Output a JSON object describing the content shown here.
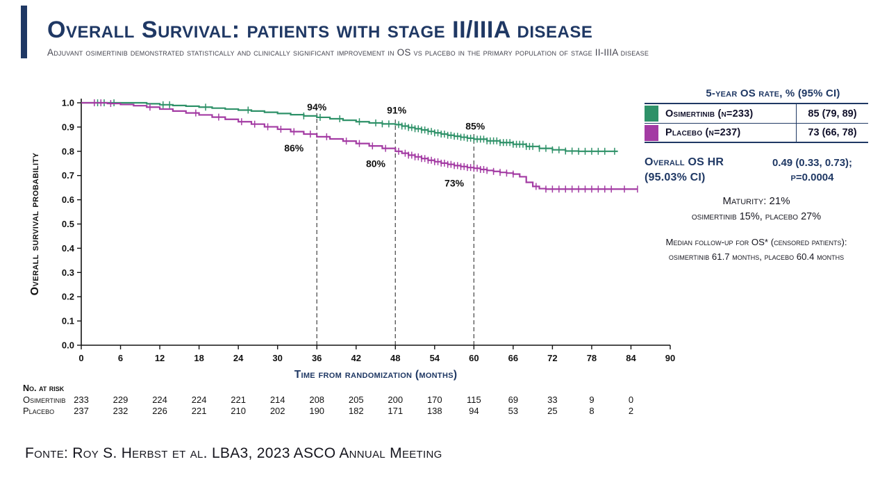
{
  "header": {
    "title": "Overall Survival: patients with stage II/IIIA disease",
    "subtitle": "Adjuvant osimertinib demonstrated statistically and clinically significant improvement in OS vs placebo in the primary population of stage II-IIIA disease"
  },
  "colors": {
    "navy": "#1f3864",
    "osimertinib_green": "#2e9168",
    "placebo_magenta": "#a33ba3",
    "dashed_line": "#5a5a5a",
    "axis": "#111111"
  },
  "chart_data": {
    "type": "line",
    "subtype": "kaplan-meier-step",
    "xlabel": "Time from randomization (months)",
    "ylabel": "Overall survival probability",
    "xlim": [
      0,
      90
    ],
    "ylim": [
      0.0,
      1.0
    ],
    "x_ticks": [
      0,
      6,
      12,
      18,
      24,
      30,
      36,
      42,
      48,
      54,
      60,
      66,
      72,
      78,
      84,
      90
    ],
    "y_ticks": [
      0.0,
      0.1,
      0.2,
      0.3,
      0.4,
      0.5,
      0.6,
      0.7,
      0.8,
      0.9,
      1.0
    ],
    "series": [
      {
        "name": "Osimertinib",
        "color_key": "osimertinib_green",
        "steps": [
          [
            0,
            1.0
          ],
          [
            8,
            1.0
          ],
          [
            10,
            0.996
          ],
          [
            12,
            0.992
          ],
          [
            14,
            0.989
          ],
          [
            16,
            0.986
          ],
          [
            18,
            0.982
          ],
          [
            20,
            0.978
          ],
          [
            22,
            0.974
          ],
          [
            24,
            0.97
          ],
          [
            26,
            0.966
          ],
          [
            28,
            0.961
          ],
          [
            30,
            0.956
          ],
          [
            32,
            0.951
          ],
          [
            34,
            0.946
          ],
          [
            36,
            0.94
          ],
          [
            38,
            0.934
          ],
          [
            40,
            0.928
          ],
          [
            42,
            0.922
          ],
          [
            44,
            0.917
          ],
          [
            46,
            0.913
          ],
          [
            48,
            0.91
          ],
          [
            49,
            0.904
          ],
          [
            50,
            0.898
          ],
          [
            51,
            0.893
          ],
          [
            52,
            0.888
          ],
          [
            53,
            0.882
          ],
          [
            54,
            0.876
          ],
          [
            55,
            0.871
          ],
          [
            56,
            0.866
          ],
          [
            57,
            0.862
          ],
          [
            58,
            0.858
          ],
          [
            59,
            0.854
          ],
          [
            60,
            0.85
          ],
          [
            62,
            0.843
          ],
          [
            64,
            0.836
          ],
          [
            66,
            0.829
          ],
          [
            68,
            0.82
          ],
          [
            70,
            0.812
          ],
          [
            72,
            0.806
          ],
          [
            74,
            0.801
          ],
          [
            76,
            0.8
          ],
          [
            82,
            0.8
          ]
        ],
        "censor_months": [
          2.5,
          3.5,
          5,
          12.5,
          13.5,
          19,
          25.5,
          34,
          36.5,
          39.5,
          42.5,
          45,
          46,
          47,
          48.5,
          49,
          49.5,
          50,
          50.5,
          51,
          51.5,
          52,
          52.5,
          53,
          53.5,
          54,
          54.5,
          55,
          55.5,
          56,
          56.5,
          57,
          57.5,
          58,
          58.5,
          59,
          59.5,
          60,
          60.5,
          61,
          61.5,
          62,
          62.5,
          63,
          63.5,
          64,
          64.5,
          65,
          65.5,
          66,
          66.5,
          67,
          67.5,
          68,
          68.5,
          69,
          70,
          71,
          72,
          73,
          74,
          75,
          76,
          77,
          78,
          79,
          80,
          81.5
        ]
      },
      {
        "name": "Placebo",
        "color_key": "placebo_magenta",
        "steps": [
          [
            0,
            1.0
          ],
          [
            4,
            0.997
          ],
          [
            6,
            0.993
          ],
          [
            8,
            0.988
          ],
          [
            10,
            0.982
          ],
          [
            12,
            0.974
          ],
          [
            14,
            0.966
          ],
          [
            16,
            0.958
          ],
          [
            18,
            0.95
          ],
          [
            20,
            0.941
          ],
          [
            22,
            0.932
          ],
          [
            24,
            0.922
          ],
          [
            26,
            0.912
          ],
          [
            28,
            0.901
          ],
          [
            30,
            0.891
          ],
          [
            32,
            0.881
          ],
          [
            34,
            0.871
          ],
          [
            36,
            0.86
          ],
          [
            38,
            0.851
          ],
          [
            40,
            0.842
          ],
          [
            42,
            0.832
          ],
          [
            44,
            0.822
          ],
          [
            46,
            0.812
          ],
          [
            48,
            0.8
          ],
          [
            49,
            0.792
          ],
          [
            50,
            0.784
          ],
          [
            51,
            0.777
          ],
          [
            52,
            0.77
          ],
          [
            53,
            0.763
          ],
          [
            54,
            0.757
          ],
          [
            55,
            0.751
          ],
          [
            56,
            0.746
          ],
          [
            57,
            0.741
          ],
          [
            58,
            0.737
          ],
          [
            59,
            0.733
          ],
          [
            60,
            0.73
          ],
          [
            61,
            0.725
          ],
          [
            62,
            0.721
          ],
          [
            63,
            0.717
          ],
          [
            64,
            0.713
          ],
          [
            65,
            0.71
          ],
          [
            66,
            0.706
          ],
          [
            67,
            0.695
          ],
          [
            68,
            0.672
          ],
          [
            69,
            0.655
          ],
          [
            70,
            0.646
          ],
          [
            71,
            0.644
          ],
          [
            85,
            0.644
          ]
        ],
        "censor_months": [
          2,
          3,
          4.5,
          10.5,
          17.5,
          21,
          24.5,
          26.5,
          28.5,
          30.5,
          32.5,
          35,
          37.5,
          40.5,
          42.5,
          44.5,
          46.5,
          48.5,
          49.5,
          50,
          50.5,
          51,
          51.5,
          52,
          52.5,
          53,
          53.5,
          54,
          54.5,
          55,
          55.5,
          56,
          56.5,
          57,
          57.5,
          58,
          58.5,
          59,
          59.5,
          60,
          60.5,
          61,
          61.5,
          62,
          63,
          64,
          65,
          66,
          69.5,
          71,
          72,
          73,
          74,
          75,
          76,
          77,
          78,
          79,
          80,
          81,
          83,
          85
        ]
      }
    ],
    "dashed_lines": [
      {
        "month": 36,
        "top": 0.957
      },
      {
        "month": 48,
        "top": 0.931
      },
      {
        "month": 60,
        "top": 0.871
      }
    ],
    "annotations": [
      {
        "text": "94%",
        "month": 36,
        "prob": 0.968,
        "series": "Osimertinib"
      },
      {
        "text": "91%",
        "month": 48.2,
        "prob": 0.955,
        "series": "Osimertinib"
      },
      {
        "text": "85%",
        "month": 60.2,
        "prob": 0.89,
        "series": "Osimertinib"
      },
      {
        "text": "86%",
        "month": 32.5,
        "prob": 0.8,
        "series": "Placebo"
      },
      {
        "text": "80%",
        "month": 45,
        "prob": 0.735,
        "series": "Placebo"
      },
      {
        "text": "73%",
        "month": 57,
        "prob": 0.655,
        "series": "Placebo"
      }
    ],
    "risk_table": {
      "label": "No. at risk",
      "months": [
        0,
        6,
        12,
        18,
        24,
        30,
        36,
        42,
        48,
        54,
        60,
        66,
        72,
        78,
        84
      ],
      "rows": [
        {
          "name": "Osimertinib",
          "values": [
            233,
            229,
            224,
            224,
            221,
            214,
            208,
            205,
            200,
            170,
            115,
            69,
            33,
            9,
            0
          ]
        },
        {
          "name": "Placebo",
          "values": [
            237,
            232,
            226,
            221,
            210,
            202,
            190,
            182,
            171,
            138,
            94,
            53,
            25,
            8,
            2
          ]
        }
      ]
    }
  },
  "side_panel": {
    "table": {
      "header": "5-year OS rate, % (95% CI)",
      "rows": [
        {
          "label": "Osimertinib (n=233)",
          "value": "85 (79, 89)"
        },
        {
          "label": "Placebo (n=237)",
          "value": "73 (66, 78)"
        }
      ]
    },
    "hr": {
      "label_line1": "Overall OS HR",
      "label_line2": "(95.03% CI)",
      "value_line1": "0.49 (0.33, 0.73);",
      "value_line2": "p=0.0004"
    },
    "maturity_line1": "Maturity: 21%",
    "maturity_line2": "osimertinib 15%, placebo 27%",
    "followup_line1": "Median follow-up for OS* (censored patients):",
    "followup_line2": "osimertinib 61.7 months, placebo 60.4 months"
  },
  "footer": {
    "source": "Fonte: Roy S. Herbst et al. LBA3, 2023 ASCO Annual Meeting"
  }
}
